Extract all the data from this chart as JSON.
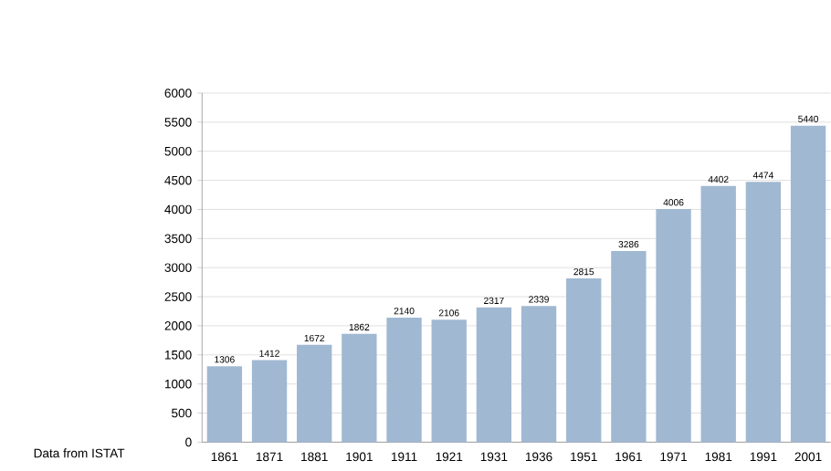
{
  "chart_data": {
    "type": "bar",
    "categories": [
      "1861",
      "1871",
      "1881",
      "1901",
      "1911",
      "1921",
      "1931",
      "1936",
      "1951",
      "1961",
      "1971",
      "1981",
      "1991",
      "2001"
    ],
    "values": [
      1306,
      1412,
      1672,
      1862,
      2140,
      2106,
      2317,
      2339,
      2815,
      3286,
      4006,
      4402,
      4474,
      5440
    ],
    "color": "#a0b8d2",
    "ylim": [
      0,
      6000
    ],
    "yticks": [
      0,
      500,
      1000,
      1500,
      2000,
      2500,
      3000,
      3500,
      4000,
      4500,
      5000,
      5500,
      6000
    ],
    "grid": "y",
    "data_labels": true,
    "annotations": [
      "Data from ISTAT"
    ]
  }
}
